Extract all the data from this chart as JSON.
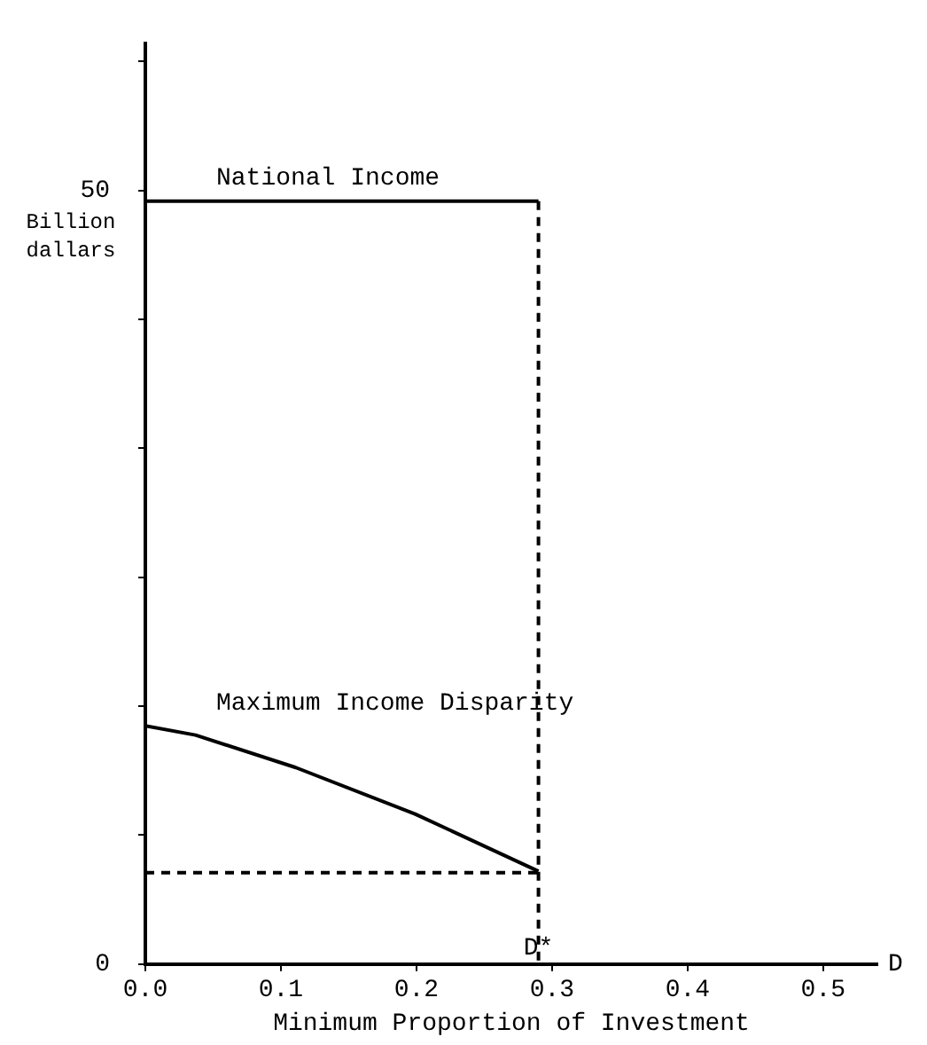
{
  "chart_data": {
    "type": "line",
    "xlabel": "Minimum Proportion of Investment",
    "ylabel": "Billion dallars",
    "xlim": [
      0,
      0.54
    ],
    "ylim": [
      0,
      59.5
    ],
    "xticks": [
      {
        "value": 0,
        "label": "0.0"
      },
      0.1,
      0.2,
      0.3,
      0.4,
      0.5
    ],
    "yticks": [
      0,
      {
        "value": 8.33,
        "label": null
      },
      {
        "value": 16.67,
        "label": null
      },
      {
        "value": 25,
        "label": null
      },
      {
        "value": 33.33,
        "label": null
      },
      {
        "value": 41.67,
        "label": null
      },
      50,
      {
        "value": 58.33,
        "label": null
      }
    ],
    "grid": false,
    "legend": false,
    "marker": "none",
    "series": [
      {
        "name": "National Income",
        "color": "#000000",
        "x": [
          0,
          0.29
        ],
        "values": [
          49.3,
          49.3
        ]
      },
      {
        "color": "#000000",
        "line_style": "dashed",
        "x": [
          0.29,
          0.29
        ],
        "values": [
          49.3,
          0
        ]
      },
      {
        "name": "Maximum Income Disparity",
        "color": "#000000",
        "x": [
          0,
          0.037,
          0.111,
          0.199,
          0.29
        ],
        "values": [
          15.4,
          14.8,
          12.7,
          9.7,
          6.0
        ]
      },
      {
        "color": "#000000",
        "line_style": "dashed",
        "x": [
          0,
          0.29
        ],
        "values": [
          5.9,
          5.9
        ]
      }
    ],
    "annotations": [
      "D",
      {
        "text": "D*",
        "x": 0.29,
        "y": 0
      }
    ]
  }
}
